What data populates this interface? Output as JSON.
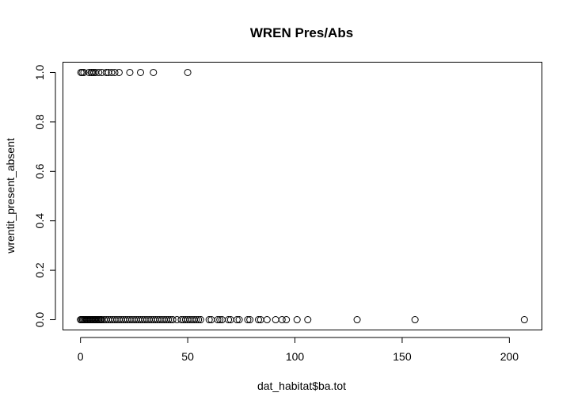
{
  "chart_data": {
    "type": "scatter",
    "title": "WREN Pres/Abs",
    "xlabel": "dat_habitat$ba.tot",
    "ylabel": "wrentit_present_absent",
    "xlim": [
      -8,
      215
    ],
    "ylim": [
      -0.04,
      1.04
    ],
    "x_ticks": [
      0,
      50,
      100,
      150,
      200
    ],
    "x_tick_labels": [
      "0",
      "50",
      "100",
      "150",
      "200"
    ],
    "y_ticks": [
      0,
      0.2,
      0.4,
      0.6,
      0.8,
      1.0
    ],
    "y_tick_labels": [
      "0.0",
      "0.2",
      "0.4",
      "0.6",
      "0.8",
      "1.0"
    ],
    "grid": false,
    "series": [
      {
        "x": [
          0.2,
          0.8,
          1.6,
          4,
          5,
          5.5,
          6.2,
          7,
          8.5,
          10,
          12,
          13,
          14.5,
          16,
          18,
          23,
          28,
          34,
          50
        ],
        "y": [
          1,
          1,
          1,
          1,
          1,
          1,
          1,
          1,
          1,
          1,
          1,
          1,
          1,
          1,
          1,
          1,
          1,
          1,
          1
        ]
      },
      {
        "x": [
          0,
          0.5,
          1,
          1.5,
          2,
          2.5,
          3,
          3.5,
          4,
          4.5,
          5,
          5.5,
          6,
          6.5,
          7,
          7.5,
          8,
          8.5,
          9,
          9.5,
          10,
          11,
          12,
          13,
          14,
          15,
          16,
          17,
          18,
          19,
          20,
          21,
          22,
          23,
          24,
          25,
          26,
          27,
          28,
          29,
          30,
          31,
          32,
          33,
          34,
          35,
          36,
          37,
          38,
          39,
          40,
          41,
          42,
          43,
          45,
          47,
          48,
          49,
          50,
          51,
          52,
          53,
          54,
          55,
          56,
          60,
          61,
          64,
          65,
          66,
          69,
          70,
          73,
          74,
          78,
          79,
          83,
          84,
          87,
          91,
          94,
          96,
          101,
          106,
          129,
          156,
          207
        ],
        "y": [
          0,
          0,
          0,
          0,
          0,
          0,
          0,
          0,
          0,
          0,
          0,
          0,
          0,
          0,
          0,
          0,
          0,
          0,
          0,
          0,
          0,
          0,
          0,
          0,
          0,
          0,
          0,
          0,
          0,
          0,
          0,
          0,
          0,
          0,
          0,
          0,
          0,
          0,
          0,
          0,
          0,
          0,
          0,
          0,
          0,
          0,
          0,
          0,
          0,
          0,
          0,
          0,
          0,
          0,
          0,
          0,
          0,
          0,
          0,
          0,
          0,
          0,
          0,
          0,
          0,
          0,
          0,
          0,
          0,
          0,
          0,
          0,
          0,
          0,
          0,
          0,
          0,
          0,
          0,
          0,
          0,
          0,
          0,
          0,
          0,
          0,
          0
        ]
      }
    ]
  }
}
